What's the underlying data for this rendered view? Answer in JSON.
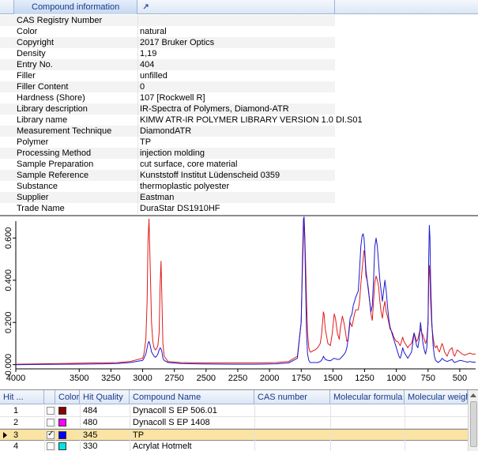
{
  "info": {
    "header": "Compound information",
    "rows": [
      {
        "key": "CAS Registry Number",
        "value": ""
      },
      {
        "key": "Color",
        "value": "natural"
      },
      {
        "key": "Copyright",
        "value": "2017 Bruker Optics"
      },
      {
        "key": "Density",
        "value": "1,19"
      },
      {
        "key": "Entry No.",
        "value": "404"
      },
      {
        "key": "Filler",
        "value": "unfilled"
      },
      {
        "key": "Filler Content",
        "value": "0"
      },
      {
        "key": "Hardness (Shore)",
        "value": "107 [Rockwell R]"
      },
      {
        "key": "Library description",
        "value": "IR-Spectra of Polymers, Diamond-ATR"
      },
      {
        "key": "Library name",
        "value": "KIMW ATR-IR POLYMER LIBRARY VERSION 1.0 DI.S01"
      },
      {
        "key": "Measurement Technique",
        "value": "DiamondATR"
      },
      {
        "key": "Polymer",
        "value": "TP"
      },
      {
        "key": "Processing Method",
        "value": "injection molding"
      },
      {
        "key": "Sample Preparation",
        "value": "cut surface, core material"
      },
      {
        "key": "Sample Reference",
        "value": "Kunststoff Institut Lüdenscheid 0359"
      },
      {
        "key": "Substance",
        "value": "thermoplastic polyester"
      },
      {
        "key": "Supplier",
        "value": "Eastman"
      },
      {
        "key": "Trade Name",
        "value": "DuraStar DS1910HF"
      }
    ]
  },
  "chart_data": {
    "type": "line",
    "x_ticks": [
      "4000",
      "3500",
      "3250",
      "3000",
      "2750",
      "2500",
      "2250",
      "2000",
      "1750",
      "1500",
      "1250",
      "1000",
      "750",
      "500"
    ],
    "y_ticks": [
      "0.000",
      "0.200",
      "0.400",
      "0.600"
    ],
    "xlim": [
      4000,
      375
    ],
    "ylim": [
      -0.02,
      0.68
    ],
    "x_reversed": true,
    "grid": false,
    "series": [
      {
        "color": "#e01a1a",
        "x": [
          4000,
          3800,
          3600,
          3400,
          3200,
          3100,
          3000,
          2990,
          2975,
          2965,
          2958,
          2950,
          2940,
          2930,
          2920,
          2910,
          2900,
          2890,
          2880,
          2870,
          2862,
          2855,
          2848,
          2840,
          2830,
          2800,
          2700,
          2500,
          2300,
          2100,
          1950,
          1850,
          1780,
          1750,
          1740,
          1732,
          1727,
          1722,
          1716,
          1708,
          1700,
          1690,
          1680,
          1670,
          1660,
          1640,
          1620,
          1600,
          1590,
          1580,
          1575,
          1570,
          1560,
          1540,
          1520,
          1505,
          1490,
          1480,
          1465,
          1450,
          1440,
          1425,
          1410,
          1400,
          1390,
          1380,
          1365,
          1350,
          1340,
          1330,
          1320,
          1300,
          1290,
          1280,
          1270,
          1262,
          1255,
          1250,
          1245,
          1240,
          1230,
          1220,
          1210,
          1200,
          1190,
          1180,
          1170,
          1160,
          1150,
          1140,
          1130,
          1120,
          1110,
          1100,
          1090,
          1080,
          1070,
          1060,
          1050,
          1040,
          1030,
          1020,
          1010,
          1000,
          990,
          980,
          970,
          960,
          950,
          940,
          930,
          920,
          910,
          900,
          880,
          860,
          850,
          840,
          830,
          820,
          810,
          800,
          790,
          780,
          770,
          760,
          750,
          745,
          740,
          735,
          730,
          720,
          710,
          700,
          690,
          680,
          670,
          660,
          650,
          640,
          630,
          620,
          600,
          580,
          560,
          550,
          540,
          520,
          500,
          480,
          460,
          440,
          420,
          400,
          375
        ],
        "y": [
          0.002,
          0.004,
          0.006,
          0.008,
          0.01,
          0.015,
          0.03,
          0.05,
          0.12,
          0.3,
          0.58,
          0.69,
          0.45,
          0.2,
          0.11,
          0.08,
          0.07,
          0.075,
          0.09,
          0.15,
          0.38,
          0.49,
          0.3,
          0.1,
          0.04,
          0.015,
          0.01,
          0.008,
          0.008,
          0.008,
          0.01,
          0.015,
          0.04,
          0.2,
          0.45,
          0.61,
          0.68,
          0.62,
          0.5,
          0.3,
          0.15,
          0.08,
          0.06,
          0.06,
          0.065,
          0.07,
          0.08,
          0.1,
          0.14,
          0.21,
          0.25,
          0.24,
          0.17,
          0.1,
          0.09,
          0.15,
          0.24,
          0.22,
          0.15,
          0.12,
          0.18,
          0.23,
          0.19,
          0.15,
          0.11,
          0.12,
          0.2,
          0.18,
          0.21,
          0.24,
          0.26,
          0.26,
          0.3,
          0.38,
          0.45,
          0.5,
          0.54,
          0.53,
          0.48,
          0.42,
          0.4,
          0.36,
          0.3,
          0.24,
          0.21,
          0.3,
          0.39,
          0.42,
          0.4,
          0.37,
          0.3,
          0.25,
          0.22,
          0.27,
          0.3,
          0.25,
          0.23,
          0.2,
          0.17,
          0.16,
          0.15,
          0.13,
          0.12,
          0.11,
          0.11,
          0.1,
          0.09,
          0.11,
          0.13,
          0.11,
          0.1,
          0.09,
          0.08,
          0.09,
          0.1,
          0.15,
          0.13,
          0.11,
          0.12,
          0.15,
          0.17,
          0.15,
          0.14,
          0.12,
          0.1,
          0.12,
          0.2,
          0.38,
          0.47,
          0.43,
          0.3,
          0.18,
          0.13,
          0.09,
          0.08,
          0.09,
          0.07,
          0.06,
          0.08,
          0.1,
          0.085,
          0.06,
          0.04,
          0.07,
          0.08,
          0.05,
          0.04,
          0.07,
          0.06,
          0.05,
          0.045,
          0.05,
          0.055,
          0.05,
          0.05
        ]
      },
      {
        "color": "#1a1ad0",
        "x": [
          4000,
          3800,
          3600,
          3400,
          3200,
          3100,
          3000,
          2990,
          2975,
          2965,
          2958,
          2950,
          2940,
          2930,
          2920,
          2910,
          2900,
          2890,
          2880,
          2870,
          2862,
          2855,
          2848,
          2840,
          2830,
          2800,
          2700,
          2500,
          2300,
          2100,
          1950,
          1850,
          1780,
          1750,
          1740,
          1732,
          1727,
          1722,
          1716,
          1708,
          1700,
          1690,
          1680,
          1670,
          1660,
          1640,
          1620,
          1600,
          1590,
          1580,
          1575,
          1570,
          1560,
          1540,
          1520,
          1505,
          1490,
          1480,
          1465,
          1450,
          1440,
          1425,
          1410,
          1400,
          1390,
          1380,
          1365,
          1350,
          1340,
          1330,
          1320,
          1300,
          1290,
          1280,
          1270,
          1262,
          1255,
          1250,
          1245,
          1240,
          1230,
          1220,
          1210,
          1200,
          1190,
          1180,
          1170,
          1160,
          1150,
          1140,
          1130,
          1120,
          1110,
          1100,
          1090,
          1080,
          1070,
          1060,
          1050,
          1040,
          1030,
          1020,
          1010,
          1000,
          990,
          980,
          970,
          960,
          950,
          940,
          930,
          920,
          910,
          900,
          880,
          860,
          850,
          840,
          830,
          820,
          810,
          800,
          790,
          780,
          770,
          760,
          750,
          745,
          740,
          735,
          730,
          720,
          710,
          700,
          690,
          680,
          670,
          660,
          650,
          640,
          630,
          620,
          600,
          580,
          560,
          550,
          540,
          520,
          500,
          480,
          460,
          440,
          420,
          400,
          375
        ],
        "y": [
          0.0,
          0.001,
          0.002,
          0.003,
          0.005,
          0.01,
          0.02,
          0.03,
          0.05,
          0.08,
          0.1,
          0.11,
          0.09,
          0.06,
          0.05,
          0.04,
          0.035,
          0.04,
          0.05,
          0.07,
          0.08,
          0.075,
          0.06,
          0.03,
          0.02,
          0.01,
          0.005,
          0.003,
          0.002,
          0.002,
          0.004,
          0.008,
          0.03,
          0.2,
          0.5,
          0.69,
          0.7,
          0.6,
          0.4,
          0.15,
          0.05,
          0.02,
          0.01,
          0.01,
          0.01,
          0.01,
          0.01,
          0.015,
          0.02,
          0.03,
          0.04,
          0.035,
          0.025,
          0.02,
          0.018,
          0.025,
          0.03,
          0.028,
          0.025,
          0.025,
          0.03,
          0.04,
          0.05,
          0.06,
          0.08,
          0.12,
          0.22,
          0.24,
          0.28,
          0.3,
          0.32,
          0.35,
          0.45,
          0.56,
          0.61,
          0.62,
          0.6,
          0.56,
          0.5,
          0.45,
          0.4,
          0.35,
          0.3,
          0.25,
          0.28,
          0.4,
          0.56,
          0.6,
          0.56,
          0.48,
          0.4,
          0.35,
          0.3,
          0.35,
          0.4,
          0.35,
          0.28,
          0.22,
          0.18,
          0.16,
          0.14,
          0.12,
          0.1,
          0.08,
          0.06,
          0.04,
          0.03,
          0.05,
          0.08,
          0.06,
          0.05,
          0.04,
          0.03,
          0.04,
          0.06,
          0.15,
          0.12,
          0.09,
          0.08,
          0.12,
          0.2,
          0.15,
          0.1,
          0.07,
          0.05,
          0.08,
          0.2,
          0.5,
          0.66,
          0.6,
          0.4,
          0.2,
          0.09,
          0.04,
          0.02,
          0.015,
          0.01,
          0.015,
          0.02,
          0.03,
          0.025,
          0.02,
          0.015,
          0.02,
          0.025,
          0.015,
          0.01,
          0.015,
          0.02,
          0.018,
          0.015,
          0.012,
          0.015,
          0.012,
          0.012
        ]
      }
    ]
  },
  "hits": {
    "columns": [
      "Hit ...",
      "",
      "Color",
      "Hit Quality",
      "Compound Name",
      "CAS number",
      "Molecular formula",
      "Molecular weight"
    ],
    "rows": [
      {
        "hit": "1",
        "checked": false,
        "color": "#8b0000",
        "quality": "484",
        "name": "Dynacoll S EP 506.01",
        "selected": false
      },
      {
        "hit": "2",
        "checked": false,
        "color": "#ff00ff",
        "quality": "480",
        "name": "Dynacoll S EP 1408",
        "selected": false
      },
      {
        "hit": "3",
        "checked": true,
        "color": "#0000ff",
        "quality": "345",
        "name": "TP",
        "selected": true
      },
      {
        "hit": "4",
        "checked": false,
        "color": "#00e5e5",
        "quality": "330",
        "name": "Acrylat Hotmelt",
        "selected": false
      }
    ]
  },
  "colors": {
    "header_text": "#1a3a8a",
    "selected_row": "#fbe3a4"
  }
}
